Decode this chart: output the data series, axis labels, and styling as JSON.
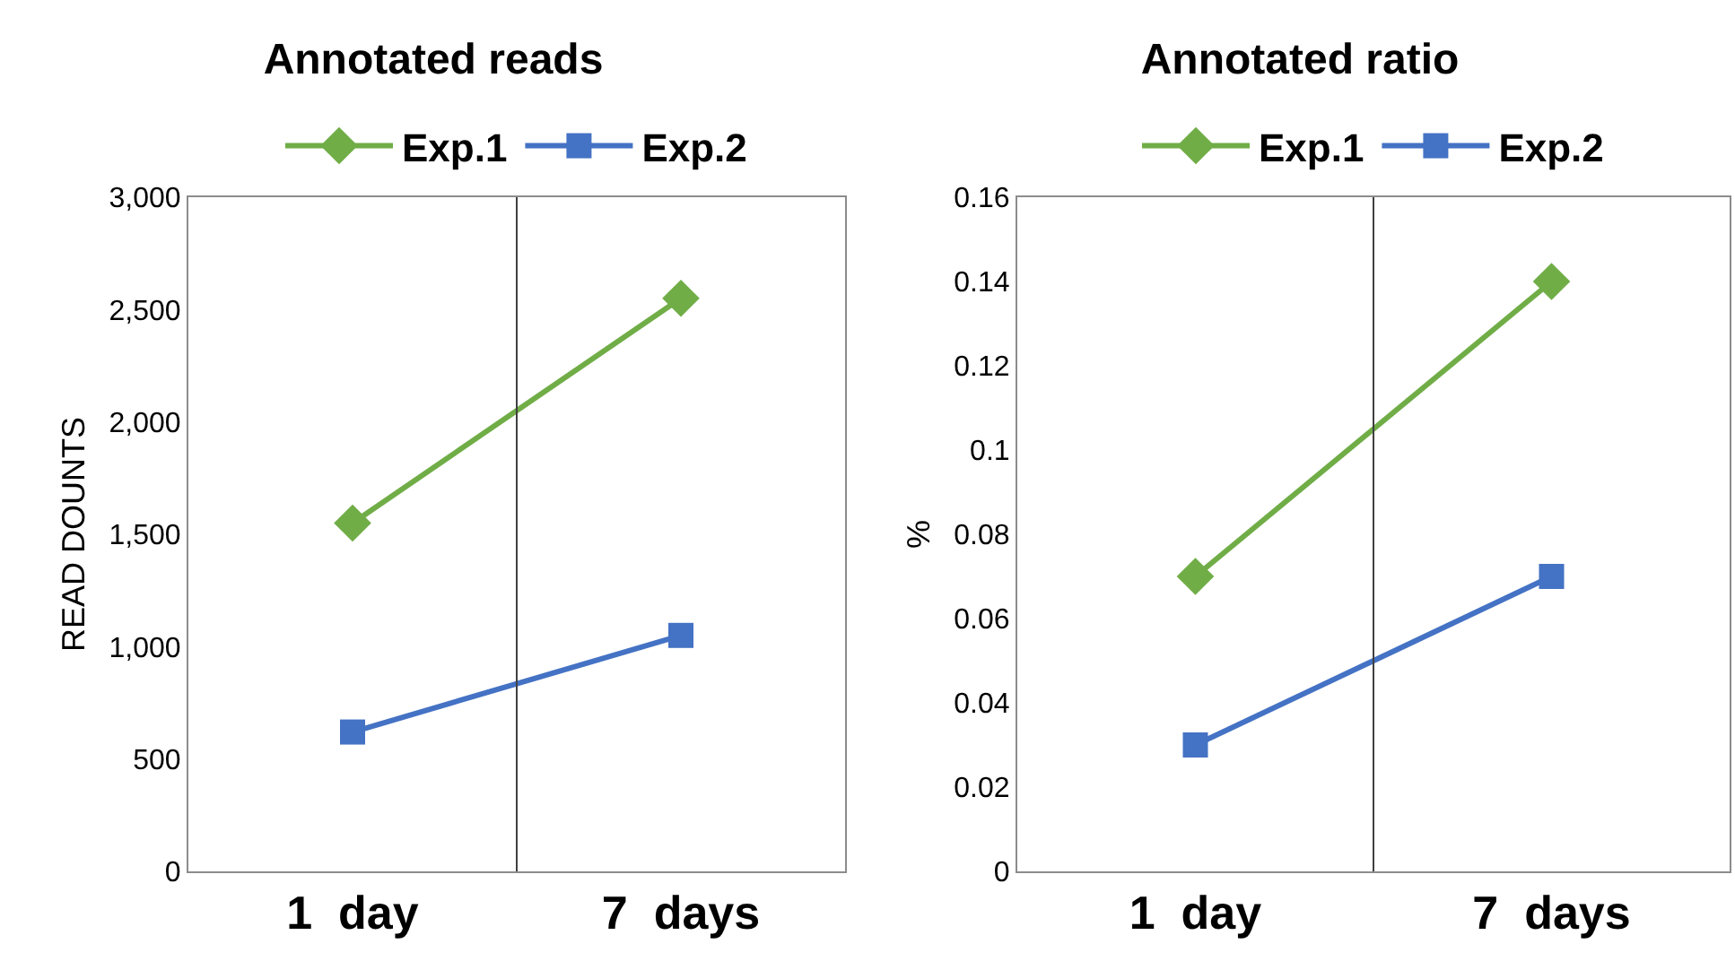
{
  "chart_data": [
    {
      "type": "line",
      "title": "Annotated reads",
      "ylabel": "READ DOUNTS",
      "categories": [
        "1  day",
        "7  days"
      ],
      "ylim": [
        0,
        3000
      ],
      "yticks": [
        0,
        {
          "value": 500,
          "label": "500"
        },
        {
          "value": 1000,
          "label": "1,000"
        },
        {
          "value": 1500,
          "label": "1,500"
        },
        {
          "value": 2000,
          "label": "2,000"
        },
        {
          "value": 2500,
          "label": "2,500"
        },
        {
          "value": 3000,
          "label": "3,000"
        }
      ],
      "grid": "x",
      "legend": "top",
      "series": [
        {
          "name": "Exp.1",
          "color": "#70ad47",
          "values": [
            1550,
            2550
          ],
          "marker": "diamond"
        },
        {
          "name": "Exp.2",
          "color": "#4472c4",
          "values": [
            620,
            1050
          ],
          "marker": "square"
        }
      ]
    },
    {
      "type": "line",
      "title": "Annotated ratio",
      "ylabel": "%",
      "categories": [
        "1  day",
        "7  days"
      ],
      "ylim": [
        0,
        0.16
      ],
      "yticks": [
        0,
        0.02,
        0.04,
        0.06,
        0.08,
        0.1,
        0.12,
        0.14,
        0.16
      ],
      "grid": "x",
      "legend": "top",
      "series": [
        {
          "name": "Exp.1",
          "color": "#70ad47",
          "values": [
            0.07,
            0.14
          ],
          "marker": "diamond"
        },
        {
          "name": "Exp.2",
          "color": "#4472c4",
          "values": [
            0.03,
            0.07
          ],
          "marker": "square"
        }
      ]
    }
  ]
}
